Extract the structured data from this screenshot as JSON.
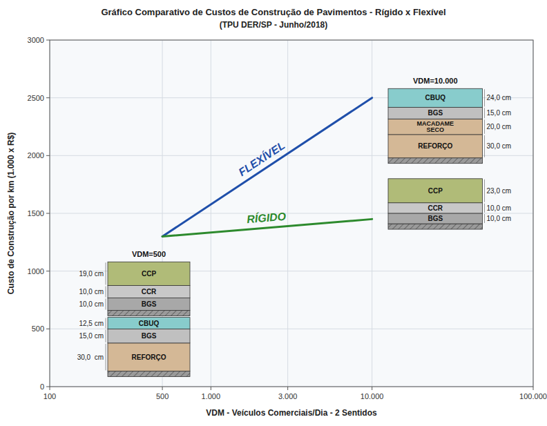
{
  "chart_data": {
    "type": "line",
    "title": "Gráfico Comparativo de Custos de Construção de Pavimentos - Rígido x Flexível",
    "subtitle": "(TPU DER/SP - Junho/2018)",
    "x_label": "VDM - Veículos Comerciais/Dia - 2 Sentidos",
    "y_label": "Custo de Construção por km (1.000 x R$)",
    "log": "x",
    "grid": true,
    "xlim": [
      100,
      100000
    ],
    "xticks": [
      100,
      500,
      {
        "value": 1000,
        "label": "1.000"
      },
      {
        "value": 3000,
        "label": "3.000"
      },
      {
        "value": 10000,
        "label": "10.000"
      },
      {
        "value": 100000,
        "label": "100.000"
      }
    ],
    "ylim": [
      0,
      3000
    ],
    "yticks": [
      0,
      500,
      1000,
      1500,
      2000,
      2500,
      3000
    ],
    "x": [
      500,
      10000
    ],
    "series": [
      {
        "name": "FLEXÍVEL",
        "color": "#1f4faa",
        "values": [
          1300,
          2500
        ]
      },
      {
        "name": "RÍGIDO",
        "color": "#2d8a2d",
        "values": [
          1300,
          1450
        ]
      }
    ],
    "sections": [
      {
        "title": "VDM=500",
        "stacks": [
          {
            "categories": [
              "BGS",
              "CCR",
              "CCP"
            ],
            "values": [
              10,
              10,
              19
            ],
            "value_labels": [
              "10,0 cm",
              "10,0 cm",
              "19,0 cm"
            ],
            "colors": [
              "#a8a8a8",
              "#c8c8c8",
              "#b0bb78"
            ]
          },
          {
            "categories": [
              "REFORÇO",
              "BGS",
              "CBUQ"
            ],
            "values": [
              30,
              15,
              12.5
            ],
            "value_labels": [
              "30,0  cm",
              "15,0 cm",
              "12,5 cm"
            ],
            "colors": [
              "#d4b896",
              "#c0c0c0",
              "#88cccc"
            ]
          }
        ]
      },
      {
        "title": "VDM=10.000",
        "stacks": [
          {
            "categories": [
              "REFORÇO",
              "MACADAME\nSECO",
              "BGS",
              "CBUQ"
            ],
            "values": [
              30,
              20,
              15,
              24
            ],
            "value_labels": [
              "30,0 cm",
              "20,0 cm",
              "15,0 cm",
              "24,0 cm"
            ],
            "colors": [
              "#d4b896",
              "#d4b896",
              "#c0c0c0",
              "#88cccc"
            ]
          },
          {
            "categories": [
              "BGS",
              "CCR",
              "CCP"
            ],
            "values": [
              10,
              10,
              23
            ],
            "value_labels": [
              "10,0 cm",
              "10,0 cm",
              "23,0 cm"
            ],
            "colors": [
              "#a8a8a8",
              "#c8c8c8",
              "#b0bb78"
            ]
          }
        ]
      }
    ]
  }
}
